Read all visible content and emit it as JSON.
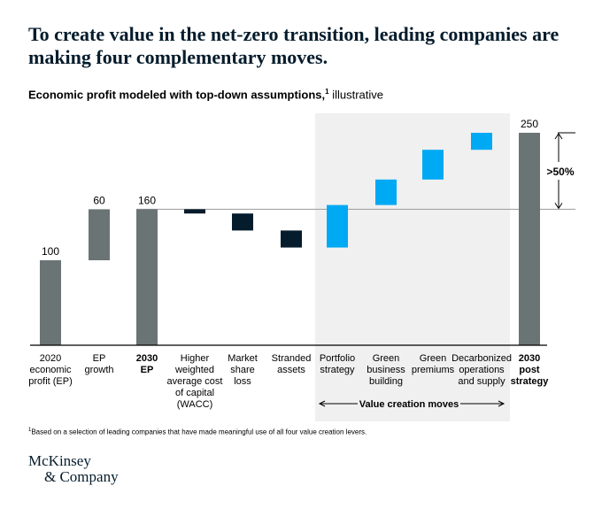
{
  "title": "To create value in the net-zero transition, leading companies are making four complementary moves.",
  "subtitle": {
    "main": "Economic profit modeled with top-down assumptions,",
    "marker": "1",
    "suffix": " illustrative"
  },
  "footnote": {
    "marker": "1",
    "text": "Based on a selection of leading companies that have made meaningful use of all four value creation levers."
  },
  "logo": {
    "line1": "McKinsey",
    "line2": "& Company"
  },
  "chart_data": {
    "type": "bar",
    "subtype": "waterfall",
    "categories": [
      [
        "2020",
        "economic",
        "profit (EP)"
      ],
      [
        "EP",
        "growth"
      ],
      [
        "2030",
        "EP"
      ],
      [
        "Higher",
        "weighted",
        "average cost",
        "of capital",
        "(WACC)"
      ],
      [
        "Market",
        "share",
        "loss"
      ],
      [
        "Stranded",
        "assets"
      ],
      [
        "Portfolio",
        "strategy"
      ],
      [
        "Green",
        "business",
        "building"
      ],
      [
        "Green",
        "premiums"
      ],
      [
        "Decarbonized",
        "operations",
        "and supply"
      ],
      [
        "2030",
        "post",
        "strategy"
      ]
    ],
    "bold_categories": [
      2,
      10
    ],
    "bars": [
      {
        "kind": "total",
        "start": 0,
        "end": 100,
        "label": "100"
      },
      {
        "kind": "increase",
        "start": 100,
        "end": 160,
        "label": "60"
      },
      {
        "kind": "total",
        "start": 0,
        "end": 160,
        "label": "160"
      },
      {
        "kind": "decrease",
        "start": 160,
        "end": 155
      },
      {
        "kind": "decrease",
        "start": 155,
        "end": 135
      },
      {
        "kind": "decrease",
        "start": 135,
        "end": 115
      },
      {
        "kind": "value-creation",
        "start": 115,
        "end": 165
      },
      {
        "kind": "value-creation",
        "start": 165,
        "end": 195
      },
      {
        "kind": "value-creation",
        "start": 195,
        "end": 230
      },
      {
        "kind": "value-creation",
        "start": 230,
        "end": 250
      },
      {
        "kind": "total",
        "start": 0,
        "end": 250,
        "label": "250"
      }
    ],
    "ylim": [
      0,
      260
    ],
    "reference_line": 160,
    "annotation": ">50%",
    "bracket_label": "Value creation moves",
    "colors": {
      "total": "#6b7475",
      "increase": "#6b7475",
      "decrease": "#051c2c",
      "value-creation": "#00a9f4",
      "shade": "#f0f0f0",
      "axis": "#000000",
      "reference": "#9a9a9a"
    }
  }
}
